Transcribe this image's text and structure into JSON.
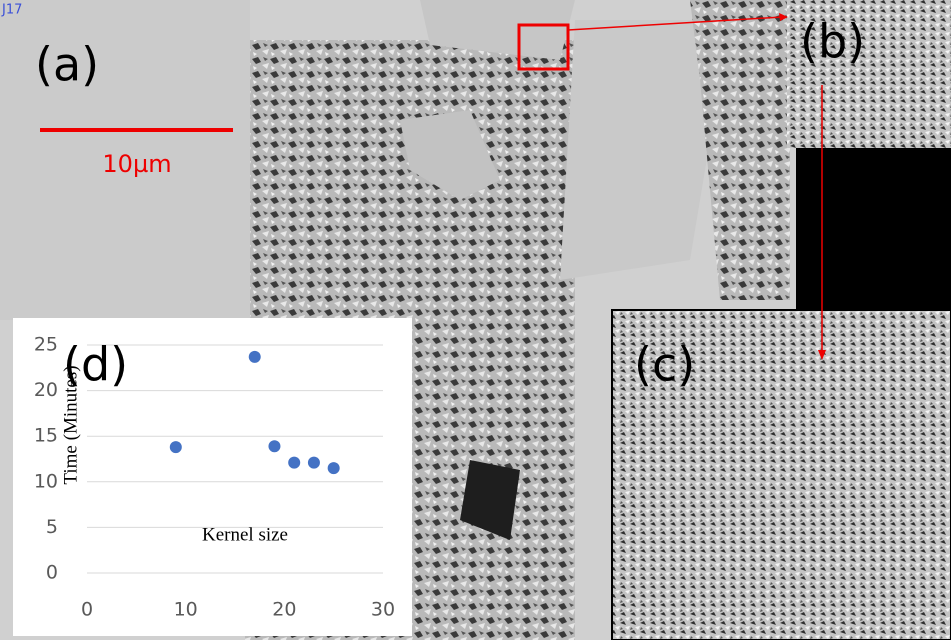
{
  "figure_text": {
    "corner_tag": "J17",
    "label_a": "(a)",
    "label_b": "(b)",
    "label_c": "(c)",
    "label_d": "(d)",
    "scale_bar": "10µm"
  },
  "chart_data": {
    "type": "scatter",
    "x_label": "Kernel size",
    "y_label": "Time (Minutes)",
    "x": [
      9,
      17,
      19,
      21,
      23,
      25
    ],
    "values": [
      13.8,
      23.7,
      13.9,
      12.1,
      12.1,
      11.5
    ],
    "color": "#4472c4",
    "xlim": [
      0,
      30
    ],
    "ylim": [
      0,
      25
    ],
    "xticks": [
      0,
      10,
      20,
      30
    ],
    "yticks": [
      0,
      5,
      10,
      15,
      20,
      25
    ],
    "grid": true
  }
}
